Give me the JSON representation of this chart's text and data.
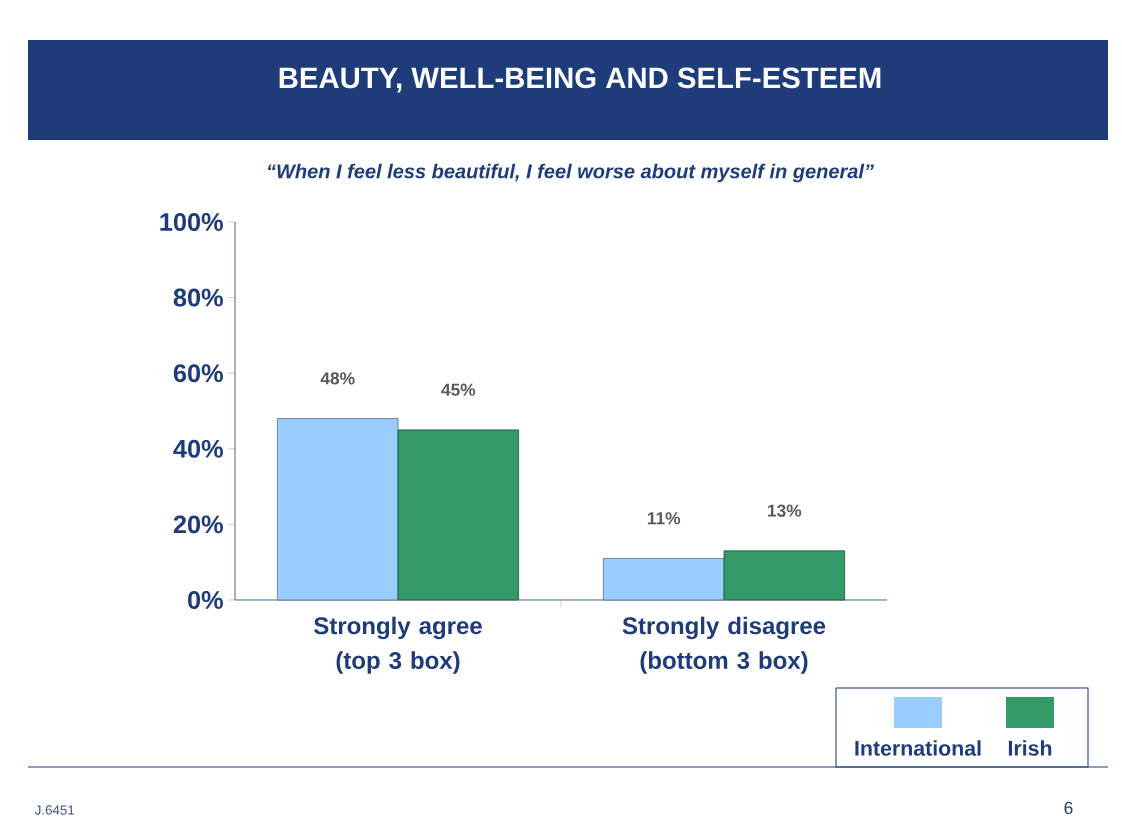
{
  "chart_data": {
    "type": "bar",
    "title": "BEAUTY, WELL-BEING AND SELF-ESTEEM",
    "subtitle": "“When I feel less beautiful, I feel worse about myself in general”",
    "categories": [
      "Strongly agree (top 3 box)",
      "Strongly disagree (bottom 3 box)"
    ],
    "series": [
      {
        "name": "International",
        "color": "#99ccff",
        "values": [
          48,
          11
        ],
        "value_labels": [
          "48%",
          "11%"
        ]
      },
      {
        "name": "Irish",
        "color": "#339966",
        "values": [
          45,
          13
        ],
        "value_labels": [
          "45%",
          "13%"
        ]
      }
    ],
    "ylim": [
      0,
      100
    ],
    "yticks": [
      {
        "value": 0,
        "label": "0%"
      },
      {
        "value": 20,
        "label": "20%"
      },
      {
        "value": 40,
        "label": "40%"
      },
      {
        "value": 60,
        "label": "60%"
      },
      {
        "value": 80,
        "label": "80%"
      },
      {
        "value": 100,
        "label": "100%"
      }
    ],
    "legend": "bottom right",
    "annotations": [
      "J.6451",
      "6"
    ]
  }
}
